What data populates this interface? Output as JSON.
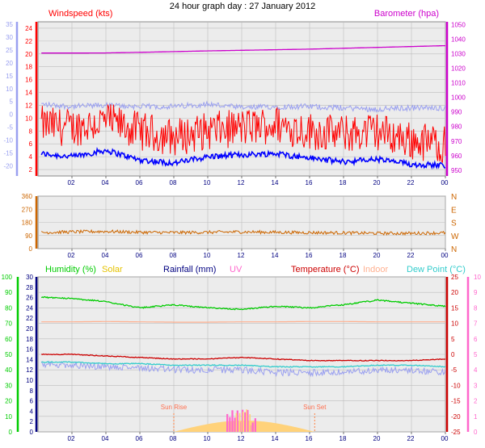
{
  "title": "24 hour graph day : 27 January 2012",
  "colors": {
    "background": "#ffffff",
    "plot_bg": "#e6e6e6",
    "grid": "#bdbdbd",
    "axis_text": "#000080",
    "wind_avg": "#0000ff",
    "wind_gust": "#ff0000",
    "temp_left_axis": "#9aa0f0",
    "barometer": "#cc00cc",
    "direction": "#cc6600",
    "humidity": "#00cc00",
    "solar": "#e5c200",
    "rainfall": "#000080",
    "uv": "#ff66cc",
    "temperature": "#cc0000",
    "indoor": "#ffb090",
    "dewpoint": "#33cccc",
    "solar_fill": "#ffd27a",
    "uv_fill": "#ff66cc"
  },
  "chart_data": [
    {
      "type": "line",
      "name": "wind-barometer",
      "title": "Windspeed (kts)",
      "right_title": "Barometer (hpa)",
      "x_ticks": [
        "02",
        "04",
        "06",
        "08",
        "10",
        "12",
        "14",
        "16",
        "18",
        "20",
        "22",
        "00"
      ],
      "y_left_ticks": [
        "2",
        "4",
        "6",
        "8",
        "10",
        "12",
        "14",
        "16",
        "18",
        "20",
        "22",
        "24"
      ],
      "y_left_range": [
        1,
        25
      ],
      "y_outer_ticks": [
        "-20",
        "-15",
        "-10",
        "-5",
        "0",
        "5",
        "10",
        "15",
        "20",
        "25",
        "30",
        "35"
      ],
      "y_outer_range": [
        -24,
        36
      ],
      "y_right_ticks": [
        "950",
        "960",
        "970",
        "980",
        "990",
        "1000",
        "1010",
        "1020",
        "1030",
        "1040",
        "1050"
      ],
      "y_right_range": [
        946,
        1052
      ],
      "x_hours": [
        0,
        2,
        4,
        6,
        8,
        10,
        12,
        14,
        16,
        18,
        20,
        22,
        24
      ],
      "series": {
        "barometer_hpa": [
          1030.5,
          1030.5,
          1030.6,
          1031.0,
          1031.5,
          1032.0,
          1032.4,
          1032.8,
          1033.2,
          1033.8,
          1034.4,
          1035.0,
          1035.6
        ],
        "gust_kts": [
          9,
          8.5,
          9.5,
          8,
          7,
          8,
          8.5,
          9,
          8,
          7.5,
          8,
          6.5,
          6
        ],
        "avg_kts": [
          4.5,
          4,
          5,
          3.5,
          3,
          4,
          4.3,
          4.5,
          3.8,
          3.2,
          3.6,
          2.8,
          2.7
        ],
        "temp_outer": [
          4,
          3,
          3.5,
          3,
          3,
          4,
          2.5,
          3,
          3,
          2.5,
          2,
          2.5,
          2.5
        ]
      }
    },
    {
      "type": "line",
      "name": "wind-direction",
      "x_ticks": [
        "02",
        "04",
        "06",
        "08",
        "10",
        "12",
        "14",
        "16",
        "18",
        "20",
        "22",
        "00"
      ],
      "y_ticks": [
        "0",
        "90",
        "180",
        "270",
        "360"
      ],
      "y_range": [
        0,
        360
      ],
      "compass": [
        "N",
        "W",
        "S",
        "E",
        "N"
      ],
      "x_hours": [
        0,
        2,
        4,
        6,
        8,
        10,
        12,
        14,
        16,
        18,
        20,
        22,
        24
      ],
      "series": {
        "direction_deg": [
          110,
          115,
          118,
          112,
          110,
          112,
          115,
          112,
          110,
          108,
          105,
          105,
          108
        ]
      }
    },
    {
      "type": "line",
      "name": "temperature-humidity",
      "legend": [
        "Humidity (%)",
        "Solar",
        "Rainfall (mm)",
        "UV",
        "Temperature (°C)",
        "Indoor",
        "Dew Point (°C)"
      ],
      "x_ticks": [
        "02",
        "04",
        "06",
        "08",
        "10",
        "12",
        "14",
        "16",
        "18",
        "20",
        "22",
        "00"
      ],
      "humidity_ticks": [
        "0",
        "10",
        "20",
        "30",
        "40",
        "50",
        "60",
        "70",
        "80",
        "90",
        "100"
      ],
      "humidity_range": [
        0,
        100
      ],
      "rain_ticks": [
        "0",
        "2",
        "4",
        "6",
        "8",
        "10",
        "12",
        "14",
        "16",
        "18",
        "20",
        "22",
        "24",
        "26",
        "28",
        "30"
      ],
      "rain_range": [
        0,
        30
      ],
      "temp_ticks": [
        "-25",
        "-20",
        "-15",
        "-10",
        "-5",
        "0",
        "5",
        "10",
        "15",
        "20",
        "25"
      ],
      "temp_range": [
        -25,
        25
      ],
      "uv_ticks": [
        "0",
        "1",
        "2",
        "3",
        "4",
        "5",
        "6",
        "7",
        "8",
        "9",
        "10"
      ],
      "uv_range": [
        0,
        10
      ],
      "sun_rise_label": "Sun Rise",
      "sun_set_label": "Sun Set",
      "sun_rise_hour": 8.0,
      "sun_set_hour": 16.3,
      "x_hours": [
        0,
        2,
        4,
        6,
        8,
        10,
        12,
        14,
        16,
        18,
        20,
        22,
        24
      ],
      "series": {
        "humidity_pct": [
          87,
          86,
          84,
          80,
          82,
          80,
          79,
          81,
          80,
          82,
          85,
          83,
          81
        ],
        "indoor_c": [
          10.5,
          10.5,
          10.6,
          10.5,
          10.4,
          10.4,
          10.5,
          10.5,
          10.6,
          10.6,
          10.5,
          10.5,
          10.5
        ],
        "temperature_c": [
          0,
          0,
          -0.5,
          -1,
          -1.5,
          -1.5,
          -1,
          -1.5,
          -2,
          -2,
          -2,
          -2,
          -1.5
        ],
        "dewpoint_c": [
          -2.5,
          -2.5,
          -3,
          -3,
          -3.5,
          -3.5,
          -3.5,
          -4,
          -4,
          -4,
          -3.5,
          -3.5,
          -4
        ],
        "rain_left_outer": [
          13,
          13,
          12.5,
          12.5,
          12,
          12,
          12,
          11.5,
          11.5,
          11.5,
          12,
          12,
          11.5
        ]
      }
    }
  ]
}
